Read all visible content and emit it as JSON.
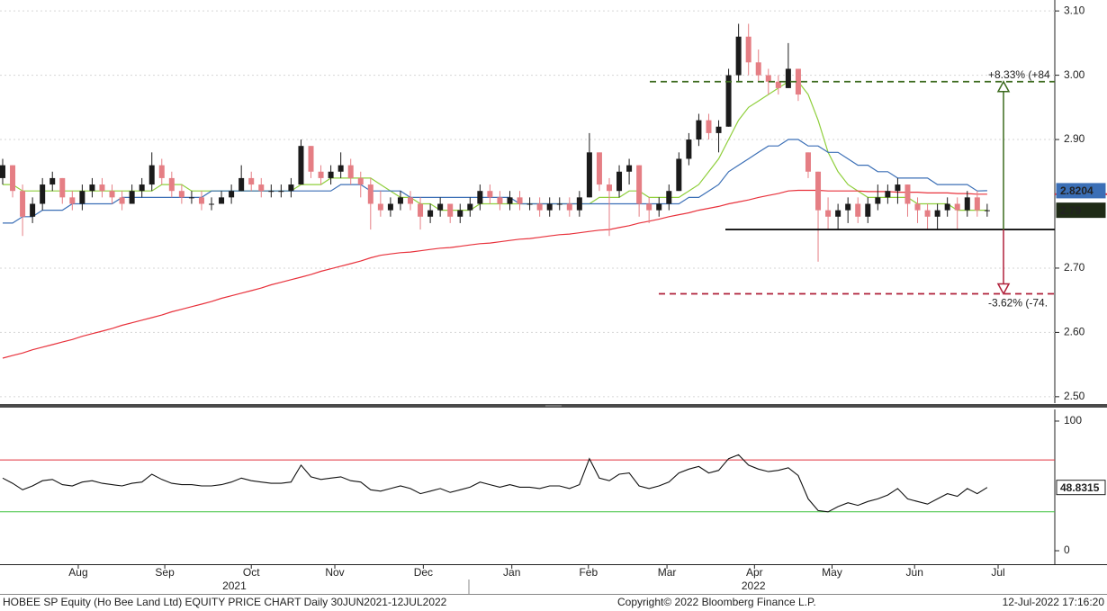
{
  "chart_data": {
    "type": "candlestick",
    "title": "HOBEE SP Equity (Ho Bee Land Ltd) EQUITY PRICE CHART  Daily 30JUN2021-12JUL2022",
    "copyright": "Copyright© 2022 Bloomberg Finance L.P.",
    "timestamp": "12-Jul-2022 17:16:20",
    "xlim": [
      -0.27,
      105.8
    ],
    "xticks": [
      {
        "value": 7.6,
        "label": "Aug"
      },
      {
        "value": 16.3,
        "label": "Sep"
      },
      {
        "value": 25,
        "label": "Oct"
      },
      {
        "value": 33.4,
        "label": "Nov"
      },
      {
        "value": 42.3,
        "label": "Dec"
      },
      {
        "value": 51.2,
        "label": "Jan"
      },
      {
        "value": 58.9,
        "label": "Feb"
      },
      {
        "value": 66.8,
        "label": "Mar"
      },
      {
        "value": 75.6,
        "label": "Apr"
      },
      {
        "value": 83.4,
        "label": "May"
      },
      {
        "value": 91.7,
        "label": "Jun"
      },
      {
        "value": 100.1,
        "label": "Jul"
      }
    ],
    "x_group_labels": [
      {
        "value": 23.3,
        "label": "2021"
      },
      {
        "value": 75.5,
        "label": "2022"
      }
    ],
    "ylim": [
      2.49,
      3.117
    ],
    "yticks": [
      {
        "value": 2.5,
        "label": "2.50"
      },
      {
        "value": 2.6,
        "label": "2.60"
      },
      {
        "value": 2.7,
        "label": "2.70"
      },
      {
        "value": 2.9,
        "label": "2.90"
      },
      {
        "value": 3.0,
        "label": "3.00"
      },
      {
        "value": 3.1,
        "label": "3.10"
      }
    ],
    "grid": true,
    "up_color": "#1b1b1b",
    "down_color": "#e57e84",
    "ohlc": [
      [
        2.84,
        2.87,
        2.83,
        2.86
      ],
      [
        2.86,
        2.86,
        2.81,
        2.82
      ],
      [
        2.82,
        2.83,
        2.75,
        2.78
      ],
      [
        2.78,
        2.81,
        2.77,
        2.8
      ],
      [
        2.8,
        2.84,
        2.79,
        2.83
      ],
      [
        2.83,
        2.85,
        2.82,
        2.84
      ],
      [
        2.84,
        2.84,
        2.8,
        2.81
      ],
      [
        2.81,
        2.82,
        2.79,
        2.8
      ],
      [
        2.8,
        2.83,
        2.79,
        2.82
      ],
      [
        2.82,
        2.84,
        2.81,
        2.83
      ],
      [
        2.83,
        2.84,
        2.81,
        2.82
      ],
      [
        2.82,
        2.83,
        2.8,
        2.81
      ],
      [
        2.81,
        2.82,
        2.79,
        2.8
      ],
      [
        2.8,
        2.83,
        2.8,
        2.82
      ],
      [
        2.82,
        2.84,
        2.81,
        2.83
      ],
      [
        2.83,
        2.88,
        2.82,
        2.86
      ],
      [
        2.86,
        2.87,
        2.83,
        2.84
      ],
      [
        2.84,
        2.85,
        2.81,
        2.82
      ],
      [
        2.82,
        2.83,
        2.8,
        2.81
      ],
      [
        2.81,
        2.82,
        2.8,
        2.81
      ],
      [
        2.81,
        2.82,
        2.79,
        2.8
      ],
      [
        2.8,
        2.81,
        2.79,
        2.8
      ],
      [
        2.8,
        2.82,
        2.8,
        2.81
      ],
      [
        2.81,
        2.83,
        2.8,
        2.82
      ],
      [
        2.82,
        2.86,
        2.82,
        2.84
      ],
      [
        2.84,
        2.85,
        2.82,
        2.83
      ],
      [
        2.83,
        2.84,
        2.81,
        2.82
      ],
      [
        2.82,
        2.83,
        2.81,
        2.82
      ],
      [
        2.82,
        2.83,
        2.81,
        2.82
      ],
      [
        2.82,
        2.84,
        2.81,
        2.83
      ],
      [
        2.83,
        2.9,
        2.83,
        2.89
      ],
      [
        2.89,
        2.89,
        2.84,
        2.85
      ],
      [
        2.85,
        2.86,
        2.83,
        2.84
      ],
      [
        2.84,
        2.86,
        2.83,
        2.85
      ],
      [
        2.85,
        2.88,
        2.84,
        2.86
      ],
      [
        2.86,
        2.87,
        2.83,
        2.84
      ],
      [
        2.84,
        2.85,
        2.81,
        2.83
      ],
      [
        2.83,
        2.84,
        2.76,
        2.8
      ],
      [
        2.8,
        2.82,
        2.78,
        2.79
      ],
      [
        2.79,
        2.81,
        2.78,
        2.8
      ],
      [
        2.8,
        2.82,
        2.79,
        2.81
      ],
      [
        2.81,
        2.82,
        2.79,
        2.8
      ],
      [
        2.8,
        2.81,
        2.76,
        2.78
      ],
      [
        2.78,
        2.8,
        2.77,
        2.79
      ],
      [
        2.79,
        2.81,
        2.78,
        2.8
      ],
      [
        2.8,
        2.8,
        2.77,
        2.78
      ],
      [
        2.78,
        2.8,
        2.77,
        2.79
      ],
      [
        2.79,
        2.81,
        2.78,
        2.8
      ],
      [
        2.8,
        2.83,
        2.79,
        2.82
      ],
      [
        2.82,
        2.83,
        2.8,
        2.81
      ],
      [
        2.81,
        2.82,
        2.79,
        2.8
      ],
      [
        2.8,
        2.82,
        2.79,
        2.81
      ],
      [
        2.81,
        2.82,
        2.79,
        2.8
      ],
      [
        2.8,
        2.81,
        2.79,
        2.8
      ],
      [
        2.8,
        2.81,
        2.78,
        2.79
      ],
      [
        2.79,
        2.81,
        2.78,
        2.8
      ],
      [
        2.8,
        2.81,
        2.79,
        2.8
      ],
      [
        2.8,
        2.81,
        2.78,
        2.79
      ],
      [
        2.79,
        2.82,
        2.78,
        2.81
      ],
      [
        2.81,
        2.91,
        2.81,
        2.88
      ],
      [
        2.88,
        2.88,
        2.82,
        2.83
      ],
      [
        2.83,
        2.84,
        2.75,
        2.82
      ],
      [
        2.82,
        2.86,
        2.81,
        2.85
      ],
      [
        2.85,
        2.87,
        2.83,
        2.86
      ],
      [
        2.86,
        2.86,
        2.78,
        2.8
      ],
      [
        2.8,
        2.81,
        2.77,
        2.79
      ],
      [
        2.79,
        2.81,
        2.78,
        2.8
      ],
      [
        2.8,
        2.83,
        2.79,
        2.82
      ],
      [
        2.82,
        2.88,
        2.82,
        2.87
      ],
      [
        2.87,
        2.91,
        2.86,
        2.9
      ],
      [
        2.9,
        2.94,
        2.89,
        2.93
      ],
      [
        2.93,
        2.94,
        2.9,
        2.91
      ],
      [
        2.91,
        2.93,
        2.88,
        2.92
      ],
      [
        2.92,
        3.01,
        2.92,
        3.0
      ],
      [
        3.0,
        3.08,
        2.99,
        3.06
      ],
      [
        3.06,
        3.08,
        3.0,
        3.02
      ],
      [
        3.02,
        3.04,
        2.99,
        3.0
      ],
      [
        3.0,
        3.01,
        2.97,
        2.99
      ],
      [
        2.99,
        3.0,
        2.97,
        2.98
      ],
      [
        2.98,
        3.05,
        2.98,
        3.01
      ],
      [
        3.01,
        3.01,
        2.96,
        2.97
      ],
      [
        2.88,
        2.88,
        2.84,
        2.85
      ],
      [
        2.85,
        2.85,
        2.71,
        2.79
      ],
      [
        2.79,
        2.81,
        2.76,
        2.78
      ],
      [
        2.78,
        2.8,
        2.76,
        2.79
      ],
      [
        2.79,
        2.81,
        2.77,
        2.8
      ],
      [
        2.8,
        2.81,
        2.77,
        2.78
      ],
      [
        2.78,
        2.81,
        2.77,
        2.8
      ],
      [
        2.8,
        2.83,
        2.79,
        2.81
      ],
      [
        2.81,
        2.83,
        2.8,
        2.82
      ],
      [
        2.82,
        2.84,
        2.8,
        2.83
      ],
      [
        2.83,
        2.83,
        2.78,
        2.8
      ],
      [
        2.8,
        2.81,
        2.77,
        2.79
      ],
      [
        2.79,
        2.8,
        2.76,
        2.78
      ],
      [
        2.78,
        2.8,
        2.76,
        2.79
      ],
      [
        2.79,
        2.81,
        2.78,
        2.8
      ],
      [
        2.8,
        2.81,
        2.76,
        2.79
      ],
      [
        2.79,
        2.82,
        2.78,
        2.81
      ],
      [
        2.81,
        2.82,
        2.78,
        2.79
      ],
      [
        2.79,
        2.8,
        2.78,
        2.79
      ]
    ],
    "series": [
      {
        "color": "#8fcf3c",
        "values": [
          2.83,
          2.83,
          2.82,
          2.82,
          2.82,
          2.82,
          2.82,
          2.82,
          2.82,
          2.82,
          2.82,
          2.82,
          2.82,
          2.82,
          2.82,
          2.82,
          2.83,
          2.83,
          2.83,
          2.82,
          2.82,
          2.82,
          2.82,
          2.82,
          2.82,
          2.82,
          2.82,
          2.82,
          2.82,
          2.82,
          2.83,
          2.83,
          2.83,
          2.84,
          2.84,
          2.84,
          2.84,
          2.84,
          2.83,
          2.82,
          2.81,
          2.81,
          2.8,
          2.8,
          2.79,
          2.79,
          2.79,
          2.79,
          2.8,
          2.8,
          2.8,
          2.8,
          2.8,
          2.8,
          2.8,
          2.8,
          2.8,
          2.8,
          2.8,
          2.8,
          2.81,
          2.81,
          2.81,
          2.82,
          2.82,
          2.81,
          2.81,
          2.81,
          2.81,
          2.82,
          2.83,
          2.85,
          2.87,
          2.9,
          2.93,
          2.95,
          2.96,
          2.97,
          2.98,
          2.99,
          2.99,
          2.97,
          2.93,
          2.88,
          2.85,
          2.83,
          2.82,
          2.81,
          2.81,
          2.81,
          2.81,
          2.81,
          2.8,
          2.8,
          2.8,
          2.8,
          2.79,
          2.79,
          2.79,
          2.79
        ]
      },
      {
        "color": "#3b6fb6",
        "values": [
          2.77,
          2.77,
          2.78,
          2.78,
          2.79,
          2.79,
          2.79,
          2.8,
          2.8,
          2.8,
          2.8,
          2.8,
          2.81,
          2.81,
          2.81,
          2.81,
          2.81,
          2.81,
          2.81,
          2.81,
          2.81,
          2.82,
          2.82,
          2.82,
          2.82,
          2.82,
          2.82,
          2.82,
          2.82,
          2.82,
          2.82,
          2.82,
          2.82,
          2.82,
          2.83,
          2.83,
          2.83,
          2.82,
          2.82,
          2.82,
          2.82,
          2.81,
          2.81,
          2.81,
          2.81,
          2.81,
          2.81,
          2.81,
          2.81,
          2.81,
          2.81,
          2.81,
          2.8,
          2.8,
          2.8,
          2.8,
          2.8,
          2.8,
          2.8,
          2.8,
          2.8,
          2.8,
          2.8,
          2.8,
          2.8,
          2.8,
          2.8,
          2.8,
          2.8,
          2.81,
          2.81,
          2.82,
          2.83,
          2.85,
          2.86,
          2.87,
          2.88,
          2.89,
          2.89,
          2.9,
          2.9,
          2.89,
          2.89,
          2.88,
          2.88,
          2.87,
          2.86,
          2.86,
          2.85,
          2.85,
          2.84,
          2.84,
          2.84,
          2.84,
          2.83,
          2.83,
          2.83,
          2.83,
          2.82,
          2.8204
        ]
      },
      {
        "color": "#e8323c",
        "values": [
          2.56,
          2.564,
          2.568,
          2.573,
          2.577,
          2.581,
          2.585,
          2.589,
          2.594,
          2.598,
          2.602,
          2.606,
          2.611,
          2.615,
          2.619,
          2.623,
          2.627,
          2.632,
          2.636,
          2.64,
          2.644,
          2.648,
          2.653,
          2.657,
          2.661,
          2.665,
          2.669,
          2.674,
          2.678,
          2.682,
          2.686,
          2.69,
          2.695,
          2.699,
          2.703,
          2.707,
          2.711,
          2.716,
          2.72,
          2.722,
          2.724,
          2.725,
          2.727,
          2.729,
          2.731,
          2.732,
          2.734,
          2.736,
          2.738,
          2.739,
          2.741,
          2.743,
          2.745,
          2.746,
          2.748,
          2.75,
          2.752,
          2.753,
          2.755,
          2.757,
          2.759,
          2.76,
          2.763,
          2.766,
          2.77,
          2.773,
          2.776,
          2.78,
          2.783,
          2.786,
          2.79,
          2.793,
          2.796,
          2.8,
          2.803,
          2.806,
          2.81,
          2.813,
          2.816,
          2.82,
          2.821,
          2.821,
          2.821,
          2.82,
          2.82,
          2.82,
          2.82,
          2.819,
          2.819,
          2.819,
          2.818,
          2.818,
          2.818,
          2.817,
          2.817,
          2.817,
          2.816,
          2.816,
          2.815,
          2.815
        ]
      }
    ],
    "last_price_color": "#1f2b16",
    "annotations": {
      "base": 2.76,
      "upper": 2.99,
      "lower": 2.66,
      "upper_label": "+8.33% (+84",
      "lower_label": "-3.62% (-74.",
      "upper_color": "#3d6b1f",
      "lower_color": "#b0203a"
    },
    "rsi": {
      "values": [
        56,
        52,
        47,
        50,
        54,
        55,
        51,
        50,
        53,
        54,
        52,
        51,
        50,
        52,
        53,
        59,
        55,
        52,
        51,
        51,
        50,
        50,
        51,
        53,
        56,
        54,
        53,
        52,
        52,
        53,
        66,
        57,
        55,
        56,
        57,
        54,
        53,
        47,
        46,
        48,
        50,
        48,
        44,
        46,
        48,
        45,
        47,
        49,
        53,
        51,
        49,
        51,
        49,
        49,
        48,
        50,
        50,
        48,
        51,
        71,
        56,
        54,
        59,
        60,
        50,
        48,
        50,
        53,
        60,
        63,
        65,
        60,
        62,
        71,
        74,
        66,
        63,
        61,
        62,
        64,
        58,
        40,
        31,
        30,
        34,
        37,
        35,
        38,
        40,
        43,
        48,
        40,
        38,
        36,
        40,
        44,
        42,
        48,
        44,
        48.8315
      ],
      "color": "#111111",
      "ylim": [
        -10.4,
        109
      ],
      "yticks": [
        0,
        100
      ],
      "bands": [
        {
          "value": 70,
          "color": "#e0323c"
        },
        {
          "value": 30,
          "color": "#3cc23c"
        }
      ]
    }
  }
}
